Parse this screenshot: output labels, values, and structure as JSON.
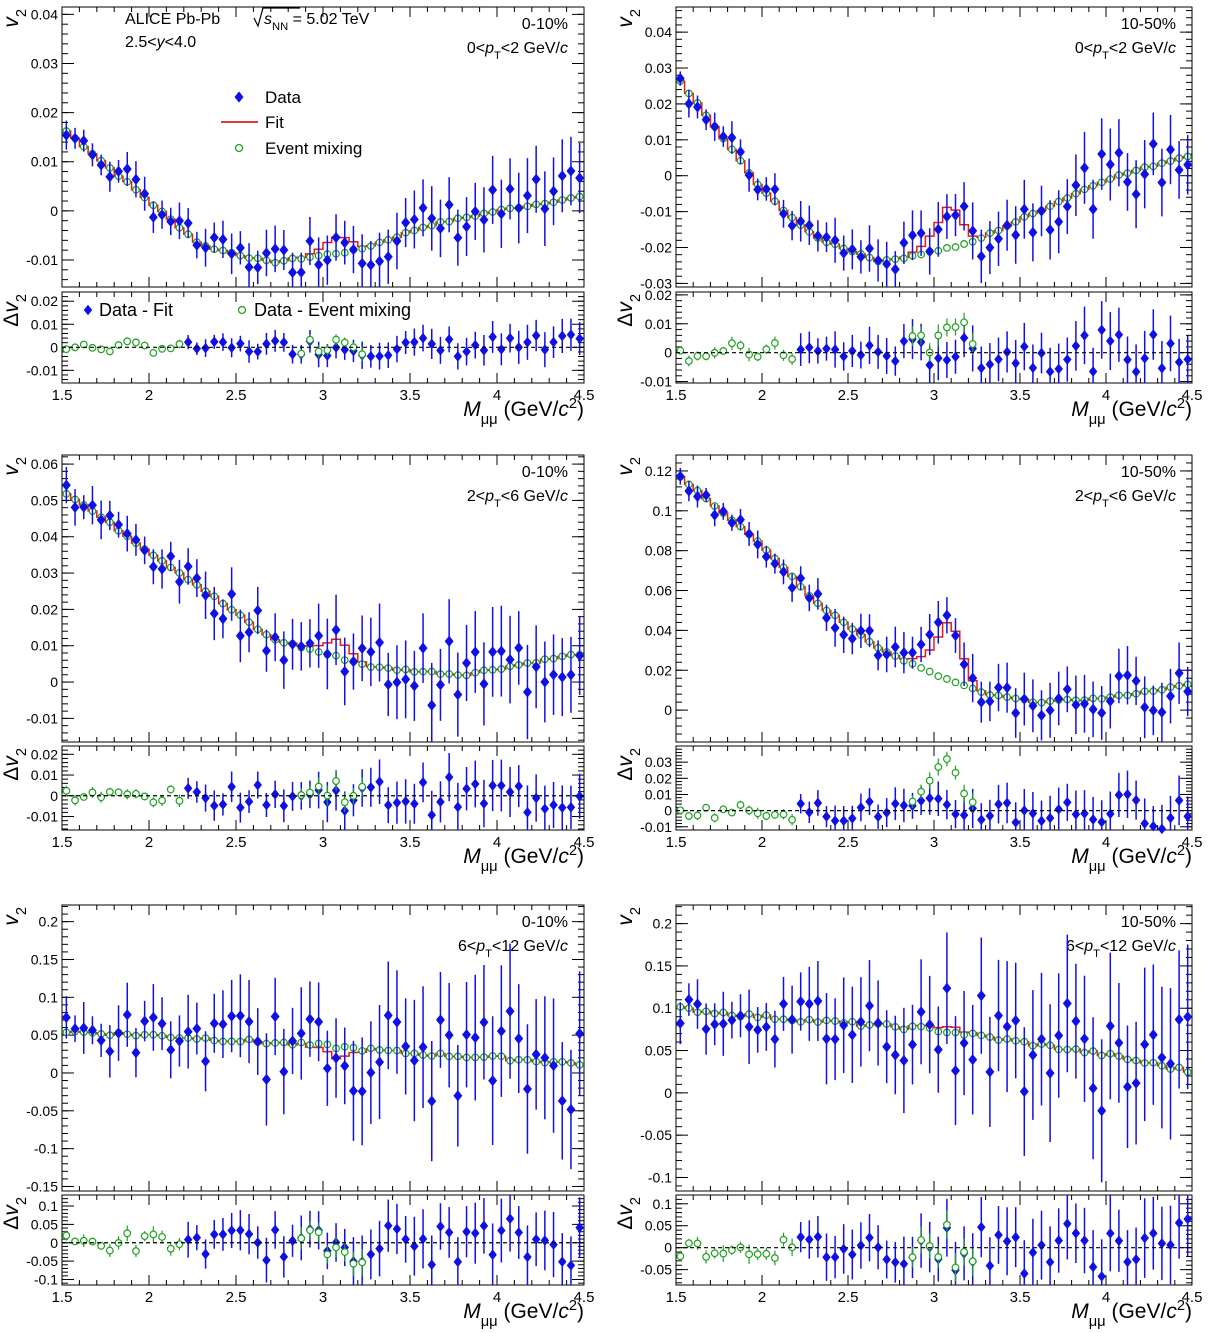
{
  "figure": {
    "experiment": "ALICE Pb-Pb",
    "energy_sym": "s",
    "energy_sub": "NN",
    "energy_val": "= 5.02 TeV",
    "rapidity": "2.5<y<4.0",
    "legend_top": {
      "data": "Data",
      "fit": "Fit",
      "mix": "Event mixing"
    },
    "legend_bottom": {
      "data": "Data - Fit",
      "mix": "Data - Event mixing"
    },
    "colors": {
      "data": "#1010e6",
      "fit": "#e61a1a",
      "mix": "#20a020",
      "axis": "#000000"
    }
  },
  "chart_data": [
    {
      "type": "scatter",
      "panel_id": "p1",
      "centrality": "0-10%",
      "pt_label": "0<pT<2 GeV/c",
      "xlabel": "Mμμ (GeV/c2)",
      "ylabel": "v2",
      "ratio_ylabel": "Δv2",
      "xlim": [
        1.5,
        4.5
      ],
      "ylim": [
        -0.0155,
        0.0415
      ],
      "ratio_ylim": [
        -0.0155,
        0.024
      ],
      "x_ticks": [
        "1.5",
        "2",
        "2.5",
        "3",
        "3.5",
        "4",
        "4.5"
      ],
      "y_ticks": [
        "-0.01",
        "0",
        "0.01",
        "0.02",
        "0.03",
        "0.04"
      ],
      "ratio_y_ticks": [
        "-0.01",
        "0",
        "0.01",
        "0.02"
      ],
      "mix_anchors": [
        [
          1.5,
          0.017
        ],
        [
          2.0,
          0.002
        ],
        [
          2.3,
          -0.007
        ],
        [
          2.7,
          -0.0105
        ],
        [
          3.2,
          -0.008
        ],
        [
          3.6,
          -0.003
        ],
        [
          4.0,
          0.0
        ],
        [
          4.5,
          0.003
        ]
      ],
      "jpsi_peak": 0.003,
      "data_scatter": 0.003,
      "mix_mode": "bump"
    },
    {
      "type": "scatter",
      "panel_id": "p2",
      "centrality": "10-50%",
      "pt_label": "0<pT<2 GeV/c",
      "xlabel": "Mμμ (GeV/c2)",
      "ylabel": "v2",
      "ratio_ylabel": "Δv2",
      "xlim": [
        1.5,
        4.5
      ],
      "ylim": [
        -0.031,
        0.047
      ],
      "ratio_ylim": [
        -0.0105,
        0.021
      ],
      "x_ticks": [
        "1.5",
        "2",
        "2.5",
        "3",
        "3.5",
        "4",
        "4.5"
      ],
      "y_ticks": [
        "-0.03",
        "-0.02",
        "-0.01",
        "0",
        "0.01",
        "0.02",
        "0.03",
        "0.04"
      ],
      "ratio_y_ticks": [
        "-0.01",
        "0",
        "0.01",
        "0.02"
      ],
      "mix_anchors": [
        [
          1.5,
          0.028
        ],
        [
          2.0,
          -0.004
        ],
        [
          2.3,
          -0.017
        ],
        [
          2.7,
          -0.024
        ],
        [
          3.2,
          -0.019
        ],
        [
          3.6,
          -0.01
        ],
        [
          4.0,
          -0.001
        ],
        [
          4.5,
          0.006
        ]
      ],
      "jpsi_peak": 0.01,
      "data_scatter": 0.004,
      "mix_mode": "bump"
    },
    {
      "type": "scatter",
      "panel_id": "p3",
      "centrality": "0-10%",
      "pt_label": "2<pT<6 GeV/c",
      "xlabel": "Mμμ (GeV/c2)",
      "ylabel": "v2",
      "ratio_ylabel": "Δv2",
      "xlim": [
        1.5,
        4.5
      ],
      "ylim": [
        -0.0165,
        0.0625
      ],
      "ratio_ylim": [
        -0.0165,
        0.024
      ],
      "x_ticks": [
        "1.5",
        "2",
        "2.5",
        "3",
        "3.5",
        "4",
        "4.5"
      ],
      "y_ticks": [
        "-0.01",
        "0",
        "0.01",
        "0.02",
        "0.03",
        "0.04",
        "0.05",
        "0.06"
      ],
      "ratio_y_ticks": [
        "-0.01",
        "0",
        "0.01",
        "0.02"
      ],
      "mix_anchors": [
        [
          1.5,
          0.053
        ],
        [
          2.0,
          0.036
        ],
        [
          2.3,
          0.026
        ],
        [
          2.7,
          0.012
        ],
        [
          3.0,
          0.008
        ],
        [
          3.3,
          0.004
        ],
        [
          3.8,
          0.002
        ],
        [
          4.5,
          0.008
        ]
      ],
      "jpsi_peak": 0.004,
      "data_scatter": 0.005,
      "mix_mode": "bump"
    },
    {
      "type": "scatter",
      "panel_id": "p4",
      "centrality": "10-50%",
      "pt_label": "2<pT<6 GeV/c",
      "xlabel": "Mμμ (GeV/c2)",
      "ylabel": "v2",
      "ratio_ylabel": "Δv2",
      "xlim": [
        1.5,
        4.5
      ],
      "ylim": [
        -0.016,
        0.128
      ],
      "ratio_ylim": [
        -0.012,
        0.04
      ],
      "x_ticks": [
        "1.5",
        "2",
        "2.5",
        "3",
        "3.5",
        "4",
        "4.5"
      ],
      "y_ticks": [
        "0",
        "0.02",
        "0.04",
        "0.06",
        "0.08",
        "0.1",
        "0.12"
      ],
      "ratio_y_ticks": [
        "-0.01",
        "0",
        "0.01",
        "0.02",
        "0.03"
      ],
      "mix_anchors": [
        [
          1.5,
          0.119
        ],
        [
          2.0,
          0.083
        ],
        [
          2.3,
          0.055
        ],
        [
          2.7,
          0.03
        ],
        [
          3.0,
          0.018
        ],
        [
          3.3,
          0.008
        ],
        [
          3.6,
          0.004
        ],
        [
          4.0,
          0.006
        ],
        [
          4.5,
          0.013
        ]
      ],
      "jpsi_peak": 0.025,
      "data_scatter": 0.006,
      "mix_mode": "fitbump"
    },
    {
      "type": "scatter",
      "panel_id": "p5",
      "centrality": "0-10%",
      "pt_label": "6<pT<12 GeV/c",
      "xlabel": "Mμμ (GeV/c2)",
      "ylabel": "v2",
      "ratio_ylabel": "Δv2",
      "xlim": [
        1.5,
        4.5
      ],
      "ylim": [
        -0.156,
        0.222
      ],
      "ratio_ylim": [
        -0.115,
        0.13
      ],
      "x_ticks": [
        "1.5",
        "2",
        "2.5",
        "3",
        "3.5",
        "4",
        "4.5"
      ],
      "y_ticks": [
        "-0.15",
        "-0.1",
        "-0.05",
        "0",
        "0.05",
        "0.1",
        "0.15",
        "0.2"
      ],
      "ratio_y_ticks": [
        "-0.1",
        "-0.05",
        "0",
        "0.05",
        "0.1"
      ],
      "mix_anchors": [
        [
          1.5,
          0.055
        ],
        [
          2.0,
          0.05
        ],
        [
          2.5,
          0.043
        ],
        [
          3.0,
          0.036
        ],
        [
          3.5,
          0.026
        ],
        [
          4.0,
          0.02
        ],
        [
          4.5,
          0.012
        ]
      ],
      "jpsi_peak": -0.012,
      "data_scatter": 0.035,
      "mix_mode": "flat"
    },
    {
      "type": "scatter",
      "panel_id": "p6",
      "centrality": "10-50%",
      "pt_label": "6<pT<12 GeV/c",
      "xlabel": "Mμμ (GeV/c2)",
      "ylabel": "v2",
      "ratio_ylabel": "Δv2",
      "xlim": [
        1.5,
        4.5
      ],
      "ylim": [
        -0.116,
        0.222
      ],
      "ratio_ylim": [
        -0.085,
        0.12
      ],
      "x_ticks": [
        "1.5",
        "2",
        "2.5",
        "3",
        "3.5",
        "4",
        "4.5"
      ],
      "y_ticks": [
        "-0.1",
        "-0.05",
        "0",
        "0.05",
        "0.1",
        "0.15",
        "0.2"
      ],
      "ratio_y_ticks": [
        "-0.05",
        "0",
        "0.05",
        "0.1"
      ],
      "mix_anchors": [
        [
          1.5,
          0.1
        ],
        [
          2.0,
          0.09
        ],
        [
          2.5,
          0.082
        ],
        [
          3.0,
          0.075
        ],
        [
          3.5,
          0.06
        ],
        [
          4.0,
          0.045
        ],
        [
          4.5,
          0.025
        ]
      ],
      "jpsi_peak": 0.006,
      "data_scatter": 0.035,
      "mix_mode": "flat"
    }
  ]
}
